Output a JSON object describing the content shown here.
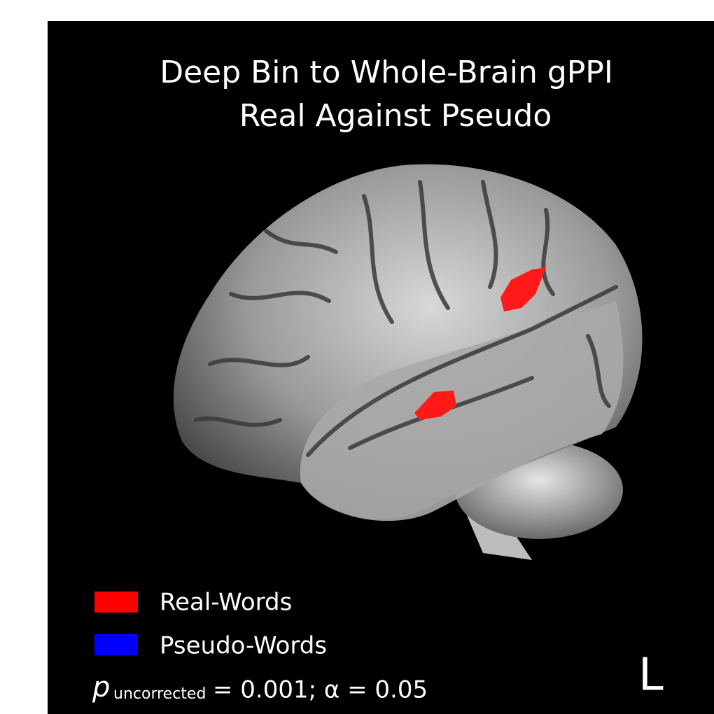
{
  "title": [
    "Deep Bin to Whole-Brain gPPI",
    "Real Against Pseudo"
  ],
  "legend": [
    {
      "label": "Real-Words",
      "color": "#ff0000"
    },
    {
      "label": "Pseudo-Words",
      "color": "#0000ff"
    }
  ],
  "stat": {
    "symbol": "p",
    "subscript": "uncorrected",
    "text": "= 0.001; α = 0.05"
  },
  "hemisphere": "L"
}
